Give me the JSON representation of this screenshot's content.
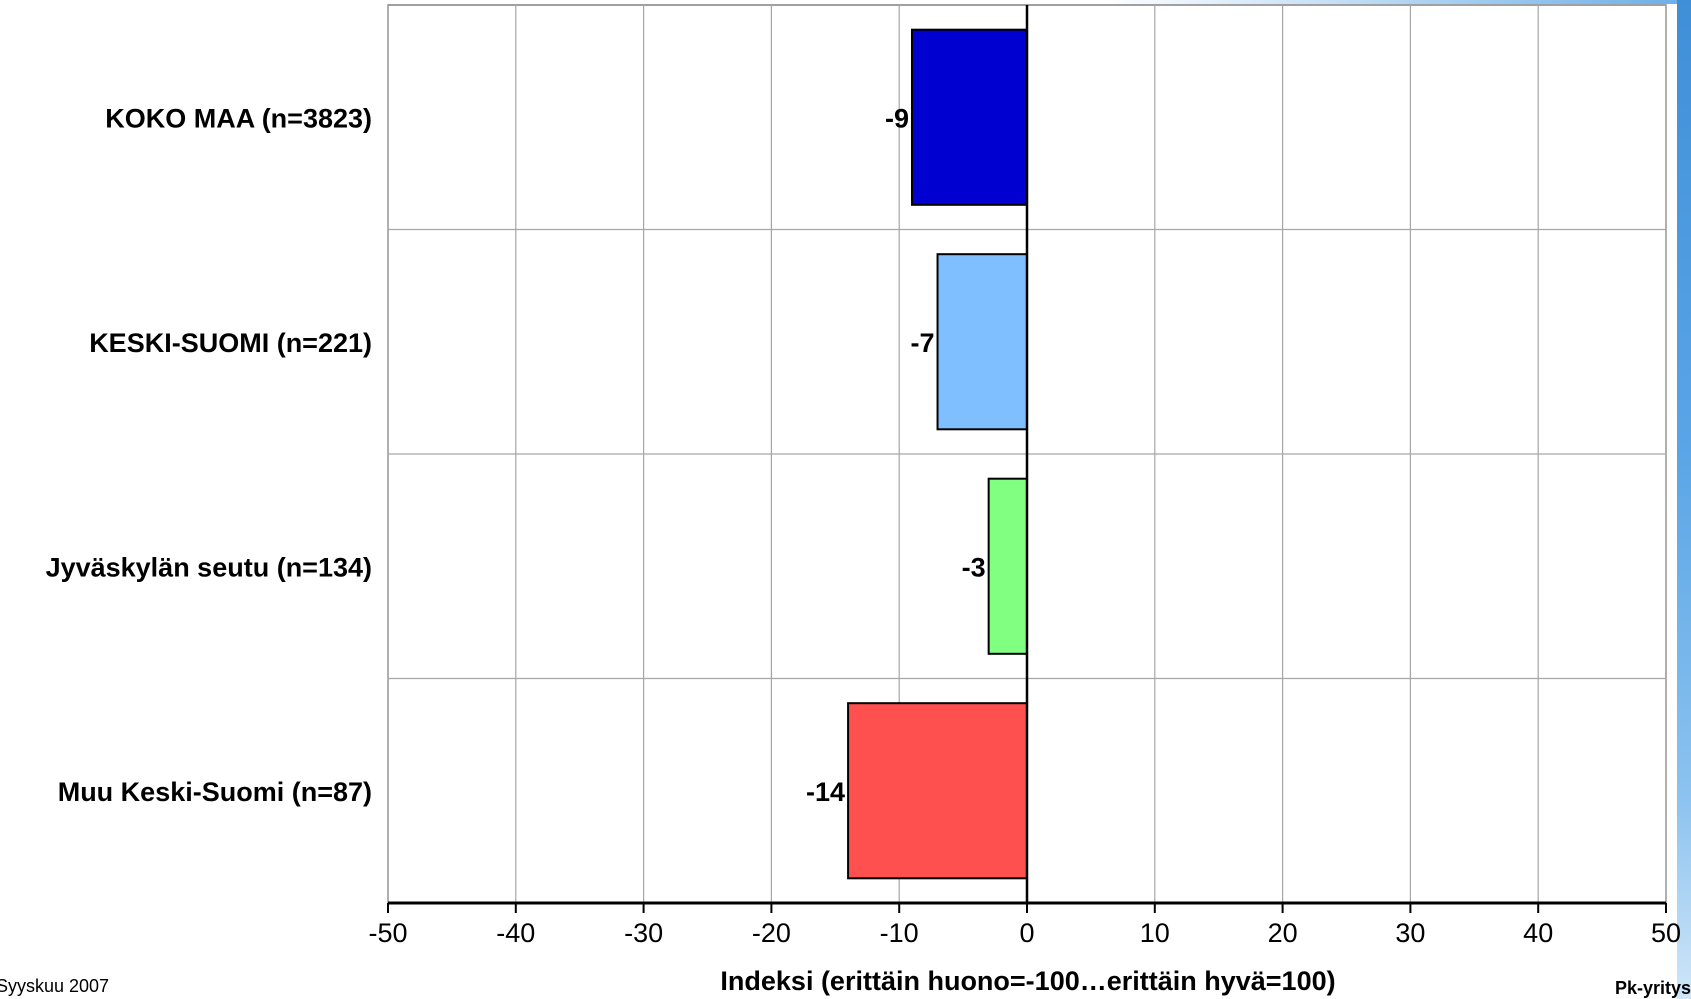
{
  "chart_data": {
    "type": "bar",
    "orientation": "horizontal",
    "categories": [
      "KOKO MAA (n=3823)",
      "KESKI-SUOMI (n=221)",
      "Jyväskylän seutu (n=134)",
      "Muu Keski-Suomi (n=87)"
    ],
    "values": [
      -9,
      -7,
      -3,
      -14
    ],
    "data_labels": [
      "-9",
      "-7",
      "-3",
      "-14"
    ],
    "colors": [
      "#0000d0",
      "#80bfff",
      "#80ff80",
      "#ff5050"
    ],
    "xlim": [
      -50,
      50
    ],
    "xticks": [
      -50,
      -40,
      -30,
      -20,
      -10,
      0,
      10,
      20,
      30,
      40,
      50
    ],
    "xlabel": "Indeksi (erittäin huono=-100…erittäin hyvä=100)",
    "grid": true,
    "legend": "none"
  },
  "footer": {
    "left": "Syyskuu 2007",
    "right": "Pk-yritys"
  }
}
